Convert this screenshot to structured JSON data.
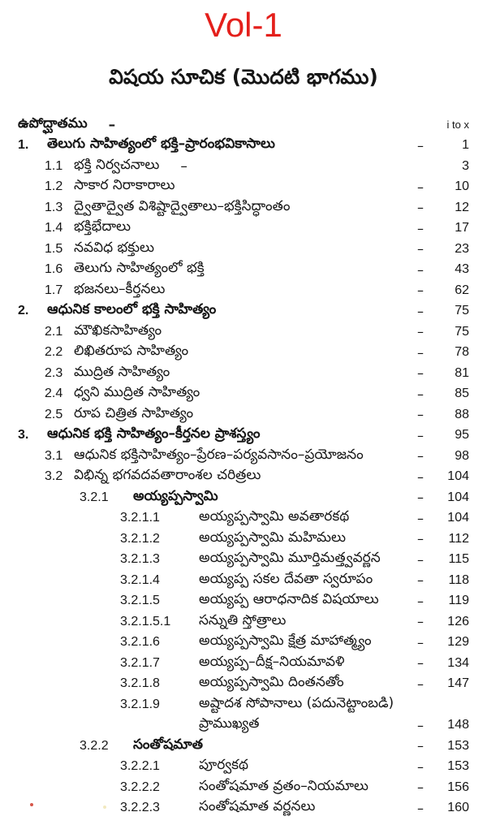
{
  "page": {
    "volume_label": "Vol-1",
    "title": "విషయ సూచిక (మొదటి భాగము)",
    "accent_color": "#e41f1b",
    "text_color": "#161616",
    "background_color": "#ffffff"
  },
  "toc": {
    "rows": [
      {
        "level": 0,
        "bold": true,
        "num": "",
        "title": "ఉపోద్ఘాతము",
        "mid_dash": "–",
        "dash": "",
        "page": "i to x",
        "small_page": true
      },
      {
        "level": 1,
        "bold": true,
        "num": "1.",
        "title": "తెలుగు సాహిత్యంలో భక్తి–ప్రారంభవికాసాలు",
        "mid_dash": "",
        "dash": "–",
        "page": "1"
      },
      {
        "level": 2,
        "bold": false,
        "num": "1.1",
        "title": "భక్తి నిర్వచనాలు",
        "mid_dash": "–",
        "dash": "",
        "page": "3"
      },
      {
        "level": 2,
        "bold": false,
        "num": "1.2",
        "title": "సాకార నిరాకారాలు",
        "mid_dash": "",
        "dash": "–",
        "page": "10"
      },
      {
        "level": 2,
        "bold": false,
        "num": "1.3",
        "title": "ద్వైతాద్వైత విశిష్టాద్వైతాలు–భక్తిసిద్ధాంతం",
        "mid_dash": "",
        "dash": "–",
        "page": "12"
      },
      {
        "level": 2,
        "bold": false,
        "num": "1.4",
        "title": "భక్తిభేదాలు",
        "mid_dash": "",
        "dash": "–",
        "page": "17"
      },
      {
        "level": 2,
        "bold": false,
        "num": "1.5",
        "title": "నవవిధ భక్తులు",
        "mid_dash": "",
        "dash": "–",
        "page": "23"
      },
      {
        "level": 2,
        "bold": false,
        "num": "1.6",
        "title": "తెలుగు సాహిత్యంలో భక్తి",
        "mid_dash": "",
        "dash": "–",
        "page": "43"
      },
      {
        "level": 2,
        "bold": false,
        "num": "1.7",
        "title": "భజనలు–కీర్తనలు",
        "mid_dash": "",
        "dash": "–",
        "page": "62"
      },
      {
        "level": 1,
        "bold": true,
        "num": "2.",
        "title": "ఆధునిక కాలంలో భక్తి సాహిత్యం",
        "mid_dash": "",
        "dash": "–",
        "page": "75"
      },
      {
        "level": 2,
        "bold": false,
        "num": "2.1",
        "title": "మౌఖికసాహిత్యం",
        "mid_dash": "",
        "dash": "–",
        "page": "75"
      },
      {
        "level": 2,
        "bold": false,
        "num": "2.2",
        "title": "లిఖితరూప సాహిత్యం",
        "mid_dash": "",
        "dash": "–",
        "page": "78"
      },
      {
        "level": 2,
        "bold": false,
        "num": "2.3",
        "title": "ముద్రిత సాహిత్యం",
        "mid_dash": "",
        "dash": "–",
        "page": "81"
      },
      {
        "level": 2,
        "bold": false,
        "num": "2.4",
        "title": "ధ్వని ముద్రిత సాహిత్యం",
        "mid_dash": "",
        "dash": "–",
        "page": "85"
      },
      {
        "level": 2,
        "bold": false,
        "num": "2.5",
        "title": "రూప చిత్రిత సాహిత్యం",
        "mid_dash": "",
        "dash": "–",
        "page": "88"
      },
      {
        "level": 1,
        "bold": true,
        "num": "3.",
        "title": "ఆధునిక భక్తి సాహిత్యం–కీర్తనల ప్రాశస్త్యం",
        "mid_dash": "",
        "dash": "–",
        "page": "95"
      },
      {
        "level": 2,
        "bold": false,
        "num": "3.1",
        "title": "ఆధునిక భక్తిసాహిత్యం–ప్రేరణ–పర్యవసానం–ప్రయోజనం",
        "mid_dash": "",
        "dash": "–",
        "page": "98"
      },
      {
        "level": 2,
        "bold": false,
        "num": "3.2",
        "title": "విభిన్న భగవదవతారాంశల చరిత్రలు",
        "mid_dash": "",
        "dash": "–",
        "page": "104"
      },
      {
        "level": 3,
        "bold_title": true,
        "num": "3.2.1",
        "title": "అయ్యప్పస్వామి",
        "mid_dash": "",
        "dash": "–",
        "page": "104"
      },
      {
        "level": 4,
        "bold": false,
        "num": "3.2.1.1",
        "title": "అయ్యప్పస్వామి అవతారకథ",
        "mid_dash": "",
        "dash": "–",
        "page": "104"
      },
      {
        "level": 4,
        "bold": false,
        "num": "3.2.1.2",
        "title": "అయ్యప్పస్వామి మహిమలు",
        "mid_dash": "",
        "dash": "–",
        "page": "112"
      },
      {
        "level": 4,
        "bold": false,
        "num": "3.2.1.3",
        "title": "అయ్యప్పస్వామి మూర్తిమత్త్వవర్ణన",
        "mid_dash": "",
        "dash": "–",
        "page": "115"
      },
      {
        "level": 4,
        "bold": false,
        "num": "3.2.1.4",
        "title": "అయ్యప్ప సకల దేవతా స్వరూపం",
        "mid_dash": "",
        "dash": "–",
        "page": "118"
      },
      {
        "level": 4,
        "bold": false,
        "num": "3.2.1.5",
        "title": "అయ్యప్ప ఆరాధనాదిక విషయాలు",
        "mid_dash": "",
        "dash": "–",
        "page": "119"
      },
      {
        "level": 4,
        "bold": false,
        "num": "3.2.1.5.1",
        "title": "సన్నుతి స్తోత్రాలు",
        "mid_dash": "",
        "dash": "–",
        "page": "126"
      },
      {
        "level": 4,
        "bold": false,
        "num": "3.2.1.6",
        "title": "అయ్యప్పస్వామి క్షేత్ర మాహాత్మ్యం",
        "mid_dash": "",
        "dash": "–",
        "page": "129"
      },
      {
        "level": 4,
        "bold": false,
        "num": "3.2.1.7",
        "title": "అయ్యప్ప–దీక్ష–నియమావళి",
        "mid_dash": "",
        "dash": "–",
        "page": "134"
      },
      {
        "level": 4,
        "bold": false,
        "num": "3.2.1.8",
        "title": "అయ్యప్పస్వామి దింతనతోం",
        "mid_dash": "",
        "dash": "–",
        "page": "147"
      },
      {
        "level": 4,
        "bold": false,
        "num": "3.2.1.9",
        "title": "అష్టాదశ సోపానాలు (పదునెట్టాంబడి)",
        "mid_dash": "",
        "dash": "",
        "page": ""
      },
      {
        "level": 4,
        "bold": false,
        "num": "",
        "title": "ప్రాముఖ్యత",
        "mid_dash": "",
        "dash": "–",
        "page": "148"
      },
      {
        "level": 3,
        "bold_title": true,
        "num": "3.2.2",
        "title": "సంతోషమాత",
        "mid_dash": "",
        "dash": "–",
        "page": "153"
      },
      {
        "level": 4,
        "bold": false,
        "num": "3.2.2.1",
        "title": "పూర్వకథ",
        "mid_dash": "",
        "dash": "–",
        "page": "153"
      },
      {
        "level": 4,
        "bold": false,
        "num": "3.2.2.2",
        "title": "సంతోషమాత వ్రతం–నియమాలు",
        "mid_dash": "",
        "dash": "–",
        "page": "156"
      },
      {
        "level": 4,
        "bold": false,
        "num": "3.2.2.3",
        "title": "సంతోషమాత వర్ణనలు",
        "mid_dash": "",
        "dash": "–",
        "page": "160"
      }
    ]
  }
}
